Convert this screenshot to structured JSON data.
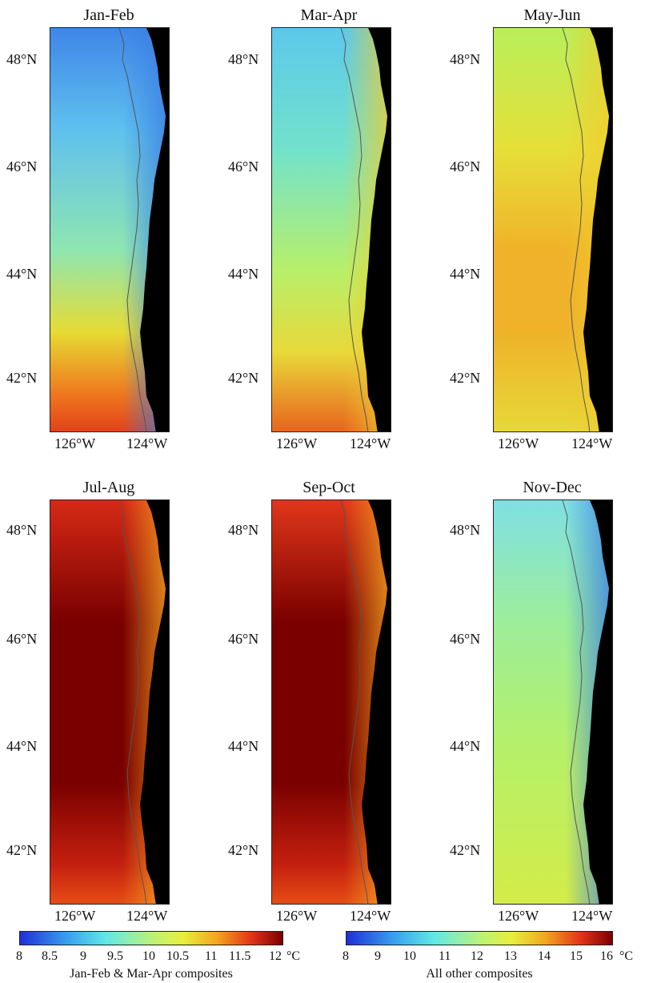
{
  "panels": [
    {
      "title": "Jan-Feb",
      "colorbar": "cb1"
    },
    {
      "title": "Mar-Apr",
      "colorbar": "cb1"
    },
    {
      "title": "May-Jun",
      "colorbar": "cb2"
    },
    {
      "title": "Jul-Aug",
      "colorbar": "cb2"
    },
    {
      "title": "Sep-Oct",
      "colorbar": "cb2"
    },
    {
      "title": "Nov-Dec",
      "colorbar": "cb2"
    }
  ],
  "lat_labels": [
    "48°N",
    "46°N",
    "44°N",
    "42°N"
  ],
  "lon_labels": [
    "126°W",
    "124°W"
  ],
  "colorbars": {
    "cb1": {
      "ticks": [
        "8",
        "8.5",
        "9",
        "9.5",
        "10",
        "10.5",
        "11",
        "11.5",
        "12"
      ],
      "unit": "°C",
      "caption": "Jan-Feb & Mar-Apr composites"
    },
    "cb2": {
      "ticks": [
        "8",
        "9",
        "10",
        "11",
        "12",
        "13",
        "14",
        "15",
        "16"
      ],
      "unit": "°C",
      "caption": "All other composites"
    }
  },
  "colors": {
    "land": "#000000",
    "coastline": "#555555",
    "colormap": [
      "#1f2fd6",
      "#3aa0ee",
      "#62e8e6",
      "#b8f27a",
      "#e8f03c",
      "#f2a51f",
      "#e43419",
      "#7a0000"
    ]
  }
}
